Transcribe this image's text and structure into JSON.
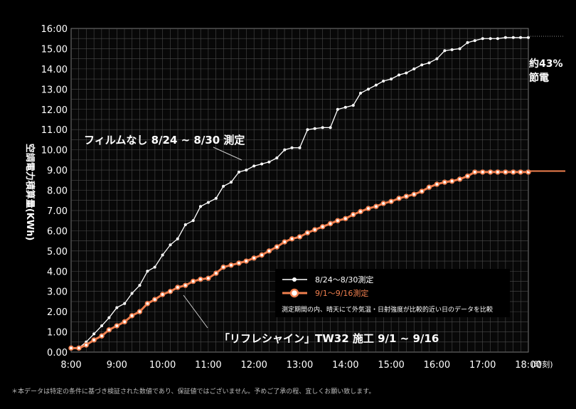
{
  "chart_data": {
    "type": "line",
    "y_axis_label": "空調電力積算量(KWh)",
    "x_unit": "(時刻)",
    "y_ticks": [
      "0.00",
      "1.00",
      "2.00",
      "3.00",
      "4.00",
      "5.00",
      "6.00",
      "7.00",
      "8.00",
      "9.00",
      "10.00",
      "11.00",
      "12.00",
      "13.00",
      "14.00",
      "15.00",
      "16:00"
    ],
    "x_ticks": [
      "8:00",
      "9:00",
      "10:00",
      "11:00",
      "12:00",
      "13:00",
      "14:00",
      "15:00",
      "16:00",
      "17:00",
      "18:00"
    ],
    "ylim": [
      0,
      16
    ],
    "xlim": [
      8,
      18
    ],
    "grid": true,
    "legend_position": "bottom-right",
    "series": [
      {
        "name": "8/24〜8/30測定",
        "color": "#ffffff",
        "annotation": "フィルムなし 8/24 ~ 8/30 測定",
        "x": [
          8.0,
          8.17,
          8.33,
          8.5,
          8.67,
          8.83,
          9.0,
          9.17,
          9.33,
          9.5,
          9.67,
          9.83,
          10.0,
          10.17,
          10.33,
          10.5,
          10.67,
          10.83,
          11.0,
          11.17,
          11.33,
          11.5,
          11.67,
          11.83,
          12.0,
          12.17,
          12.33,
          12.5,
          12.67,
          12.83,
          13.0,
          13.17,
          13.33,
          13.5,
          13.67,
          13.83,
          14.0,
          14.17,
          14.33,
          14.5,
          14.67,
          14.83,
          15.0,
          15.17,
          15.33,
          15.5,
          15.67,
          15.83,
          16.0,
          16.17,
          16.33,
          16.5,
          16.67,
          16.83,
          17.0,
          17.17,
          17.33,
          17.5,
          17.67,
          17.83,
          18.0
        ],
        "y": [
          0.2,
          0.2,
          0.5,
          0.9,
          1.3,
          1.7,
          2.2,
          2.4,
          2.9,
          3.3,
          4.0,
          4.2,
          4.8,
          5.3,
          5.6,
          6.3,
          6.5,
          7.2,
          7.4,
          7.6,
          8.2,
          8.4,
          8.9,
          9.0,
          9.2,
          9.3,
          9.4,
          9.6,
          10.0,
          10.1,
          10.1,
          11.0,
          11.05,
          11.1,
          11.1,
          12.0,
          12.1,
          12.2,
          12.8,
          13.0,
          13.2,
          13.4,
          13.5,
          13.7,
          13.8,
          14.0,
          14.2,
          14.3,
          14.5,
          14.9,
          14.95,
          15.0,
          15.3,
          15.4,
          15.5,
          15.5,
          15.5,
          15.55,
          15.55,
          15.55,
          15.55
        ]
      },
      {
        "name": "9/1〜9/16測定",
        "color": "#f07f4e",
        "annotation": "「リフレシャイン」TW32 施工 9/1 ~ 9/16",
        "x": [
          8.0,
          8.17,
          8.33,
          8.5,
          8.67,
          8.83,
          9.0,
          9.17,
          9.33,
          9.5,
          9.67,
          9.83,
          10.0,
          10.17,
          10.33,
          10.5,
          10.67,
          10.83,
          11.0,
          11.17,
          11.33,
          11.5,
          11.67,
          11.83,
          12.0,
          12.17,
          12.33,
          12.5,
          12.67,
          12.83,
          13.0,
          13.17,
          13.33,
          13.5,
          13.67,
          13.83,
          14.0,
          14.17,
          14.33,
          14.5,
          14.67,
          14.83,
          15.0,
          15.17,
          15.33,
          15.5,
          15.67,
          15.83,
          16.0,
          16.17,
          16.33,
          16.5,
          16.67,
          16.83,
          17.0,
          17.17,
          17.33,
          17.5,
          17.67,
          17.83,
          18.0
        ],
        "y": [
          0.2,
          0.2,
          0.35,
          0.6,
          0.8,
          1.1,
          1.3,
          1.5,
          1.8,
          2.0,
          2.4,
          2.6,
          2.85,
          3.0,
          3.2,
          3.3,
          3.5,
          3.6,
          3.65,
          3.9,
          4.2,
          4.3,
          4.4,
          4.5,
          4.65,
          4.8,
          5.0,
          5.2,
          5.45,
          5.6,
          5.7,
          5.9,
          6.05,
          6.2,
          6.35,
          6.5,
          6.6,
          6.8,
          6.95,
          7.1,
          7.2,
          7.35,
          7.45,
          7.6,
          7.7,
          7.8,
          7.95,
          8.15,
          8.3,
          8.4,
          8.45,
          8.55,
          8.7,
          8.9,
          8.9,
          8.9,
          8.9,
          8.9,
          8.9,
          8.9,
          8.9
        ]
      }
    ],
    "legend_note": "測定期間の内、晴天にて外気温・日射強度が比較的近い日のデータを比較",
    "savings_annotation": [
      "約43%",
      "節電"
    ]
  },
  "footnote": "＊本データは特定の条件に基づき検証された数値であり、保証値ではございません。予めご了承の程、宜しくお願い致します。"
}
